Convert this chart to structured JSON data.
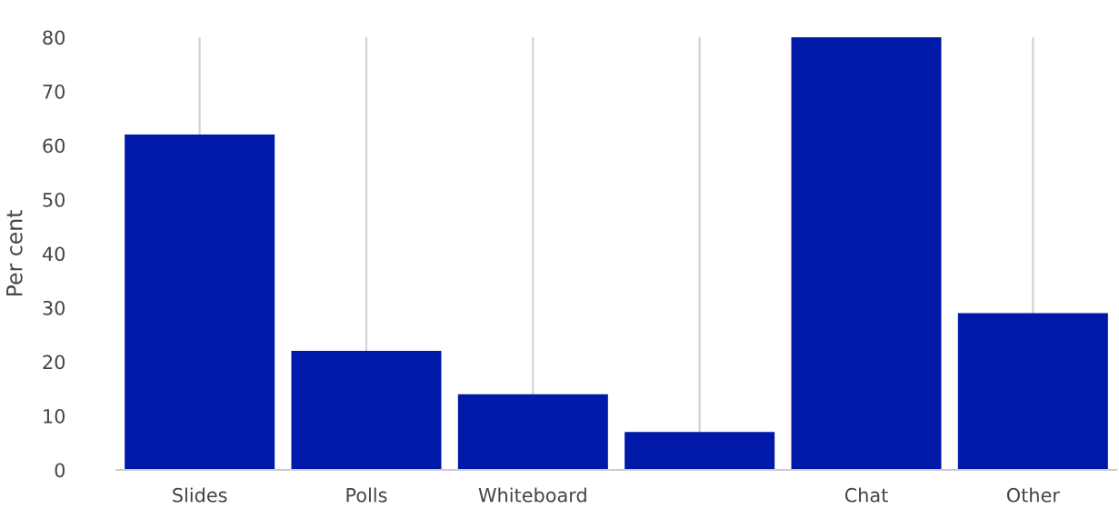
{
  "chart_data": {
    "type": "bar",
    "ylabel": "Per cent",
    "categories": [
      "Slides",
      "Polls",
      "Whiteboard",
      null,
      "Chat",
      "Other"
    ],
    "values": [
      62,
      22,
      14,
      7,
      80,
      29
    ],
    "color": "#0019a8",
    "ylim": [
      0,
      80
    ],
    "yticks": [
      0,
      10,
      20,
      30,
      40,
      50,
      60,
      70,
      80
    ],
    "grid": "x",
    "legend": false
  }
}
